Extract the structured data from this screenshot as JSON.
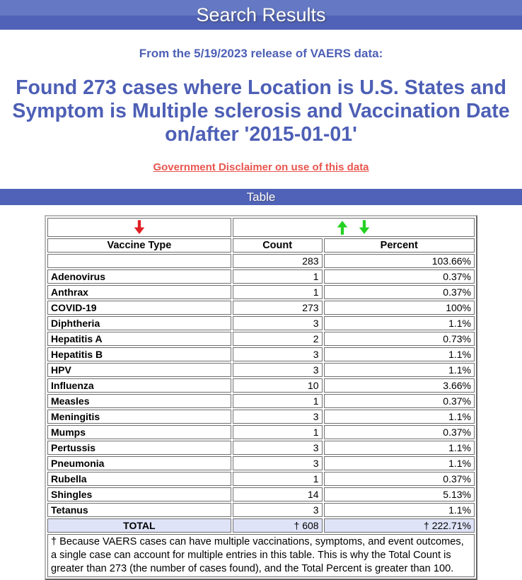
{
  "header": {
    "title": "Search Results"
  },
  "intro": {
    "release_line": "From the 5/19/2023 release of VAERS data:",
    "found_heading": "Found 273 cases where Location is U.S. States and Symptom is Multiple sclerosis and Vaccination Date on/after '2015-01-01'",
    "disclaimer_link": "Government Disclaimer on use of this data"
  },
  "table_section": {
    "bar_title": "Table",
    "sort_icons": {
      "vaccine_sort": "red-down-arrow",
      "count_sort_asc": "green-up-arrow",
      "count_sort_desc": "green-down-arrow"
    },
    "columns": [
      "Vaccine Type",
      "Count",
      "Percent"
    ],
    "rows": [
      {
        "vaccine": "",
        "count": "283",
        "percent": "103.66%"
      },
      {
        "vaccine": "Adenovirus",
        "count": "1",
        "percent": "0.37%"
      },
      {
        "vaccine": "Anthrax",
        "count": "1",
        "percent": "0.37%"
      },
      {
        "vaccine": "COVID-19",
        "count": "273",
        "percent": "100%"
      },
      {
        "vaccine": "Diphtheria",
        "count": "3",
        "percent": "1.1%"
      },
      {
        "vaccine": "Hepatitis A",
        "count": "2",
        "percent": "0.73%"
      },
      {
        "vaccine": "Hepatitis B",
        "count": "3",
        "percent": "1.1%"
      },
      {
        "vaccine": "HPV",
        "count": "3",
        "percent": "1.1%"
      },
      {
        "vaccine": "Influenza",
        "count": "10",
        "percent": "3.66%"
      },
      {
        "vaccine": "Measles",
        "count": "1",
        "percent": "0.37%"
      },
      {
        "vaccine": "Meningitis",
        "count": "3",
        "percent": "1.1%"
      },
      {
        "vaccine": "Mumps",
        "count": "1",
        "percent": "0.37%"
      },
      {
        "vaccine": "Pertussis",
        "count": "3",
        "percent": "1.1%"
      },
      {
        "vaccine": "Pneumonia",
        "count": "3",
        "percent": "1.1%"
      },
      {
        "vaccine": "Rubella",
        "count": "1",
        "percent": "0.37%"
      },
      {
        "vaccine": "Shingles",
        "count": "14",
        "percent": "5.13%"
      },
      {
        "vaccine": "Tetanus",
        "count": "3",
        "percent": "1.1%"
      }
    ],
    "total": {
      "label": "TOTAL",
      "count": "† 608",
      "percent": "† 222.71%"
    },
    "footnote": "† Because VAERS cases can have multiple vaccinations, symptoms, and event outcomes, a single case can account for multiple entries in this table. This is why the Total Count is greater than 273 (the number of cases found), and the Total Percent is greater than 100."
  },
  "colors": {
    "banner_top": "#6478c4",
    "banner_bottom": "#4f62b7",
    "heading_text": "#4d5fb5",
    "disclaimer_link": "#e8564e",
    "total_row_bg": "#dfe3f8",
    "sort_arrow_red": "#e01f24",
    "sort_arrow_green": "#24d122"
  }
}
